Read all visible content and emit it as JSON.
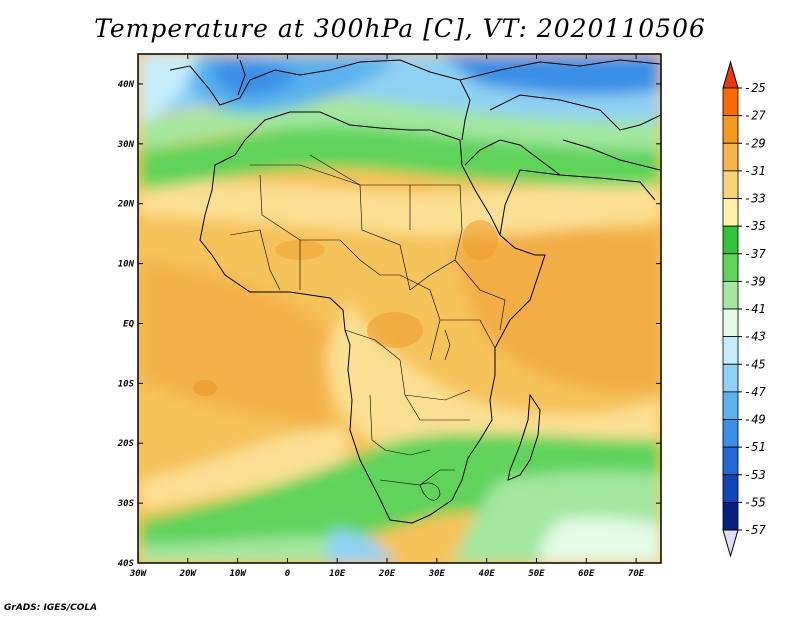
{
  "title": "Temperature at 300hPa [C], VT: 2020110506",
  "credit": "GrADS: IGES/COLA",
  "map": {
    "lat_labels": [
      "40N",
      "30N",
      "20N",
      "10N",
      "EQ",
      "10S",
      "20S",
      "30S",
      "40S"
    ],
    "lon_labels": [
      "30W",
      "20W",
      "10W",
      "0",
      "10E",
      "20E",
      "30E",
      "40E",
      "50E",
      "60E",
      "70E"
    ]
  },
  "colorbar": {
    "labels": [
      "-25",
      "-27",
      "-29",
      "-31",
      "-33",
      "-35",
      "-37",
      "-39",
      "-41",
      "-43",
      "-45",
      "-47",
      "-49",
      "-51",
      "-53",
      "-55",
      "-57"
    ],
    "colors": [
      "#e8380f",
      "#ff6a00",
      "#f39a1a",
      "#f5b54a",
      "#f6d477",
      "#fff2a8",
      "#31c43a",
      "#5fd35a",
      "#a3e7a0",
      "#e4fbe6",
      "#c6eefa",
      "#8fd2f3",
      "#5ab2ee",
      "#3b8fe6",
      "#2468d8",
      "#1145b8",
      "#0a1f82",
      "#0a0a60"
    ],
    "max_color": "#e8380f",
    "min_color": "#e2ddf5"
  }
}
